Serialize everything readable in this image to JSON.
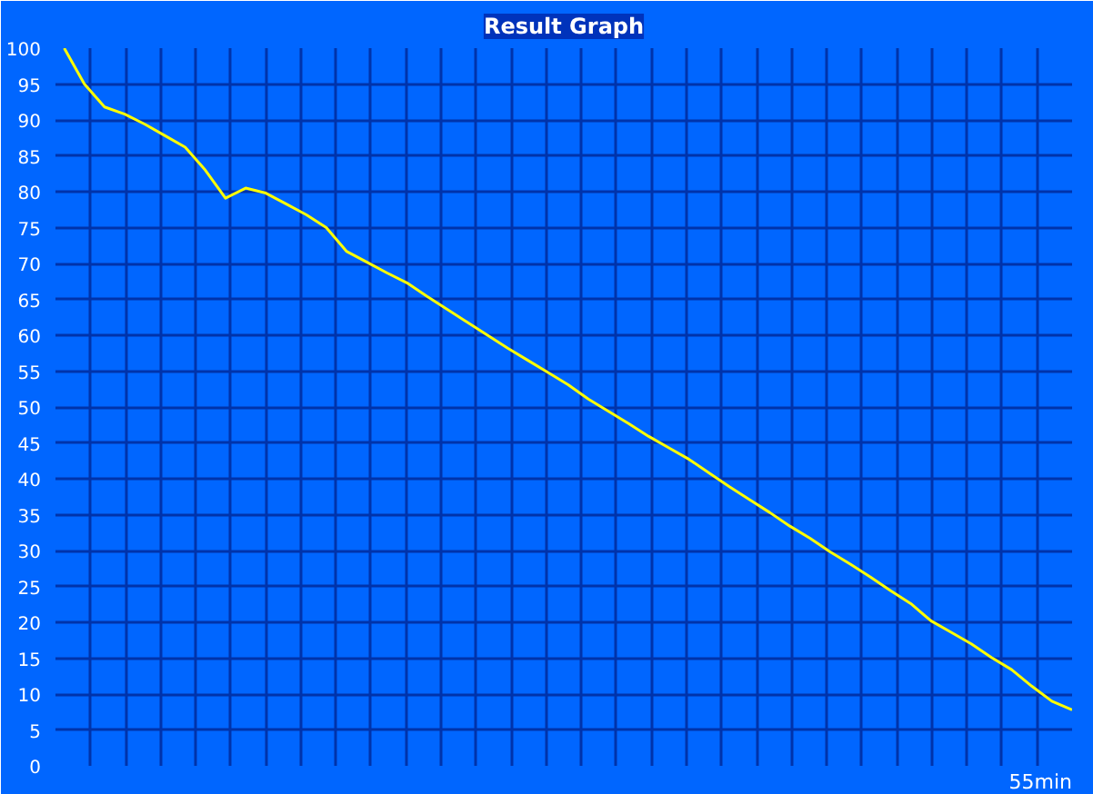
{
  "chart_data": {
    "type": "line",
    "title": "Result Graph",
    "categories": [
      null,
      null,
      null,
      null,
      null,
      null,
      null,
      null,
      null,
      null,
      null,
      null,
      null,
      null,
      null,
      null,
      null,
      null,
      null,
      null,
      null,
      null,
      null,
      null,
      null,
      null,
      null,
      null,
      null,
      null,
      null,
      null,
      null,
      null,
      null,
      null,
      null,
      null,
      null,
      null,
      null,
      null,
      null,
      null,
      null,
      null,
      null,
      null,
      null,
      null,
      null
    ],
    "series": [
      {
        "color": "#ffff00",
        "values": [
          100,
          95,
          91.8,
          90.8,
          89.4,
          87.8,
          86.2,
          83,
          79.1,
          80.5,
          79.8,
          78.3,
          76.8,
          75,
          71.7,
          70.2,
          68.7,
          67.3,
          65.4,
          63.6,
          61.8,
          60,
          58.2,
          56.5,
          54.8,
          53.1,
          51.1,
          49.4,
          47.7,
          45.9,
          44.3,
          42.7,
          40.8,
          38.9,
          37.1,
          35.3,
          33.4,
          31.7,
          29.8,
          28.1,
          26.3,
          24.4,
          22.6,
          20.2,
          18.6,
          17,
          15.1,
          13.4,
          11.1,
          9,
          7.8
        ]
      }
    ],
    "ylim": [
      0,
      100
    ],
    "yticks": [
      0,
      5,
      10,
      15,
      20,
      25,
      30,
      35,
      40,
      45,
      50,
      55,
      60,
      65,
      70,
      75,
      80,
      85,
      90,
      95,
      100
    ],
    "annotations": [
      "55min"
    ],
    "grid": true,
    "marker": "none",
    "line_style": "solid"
  }
}
